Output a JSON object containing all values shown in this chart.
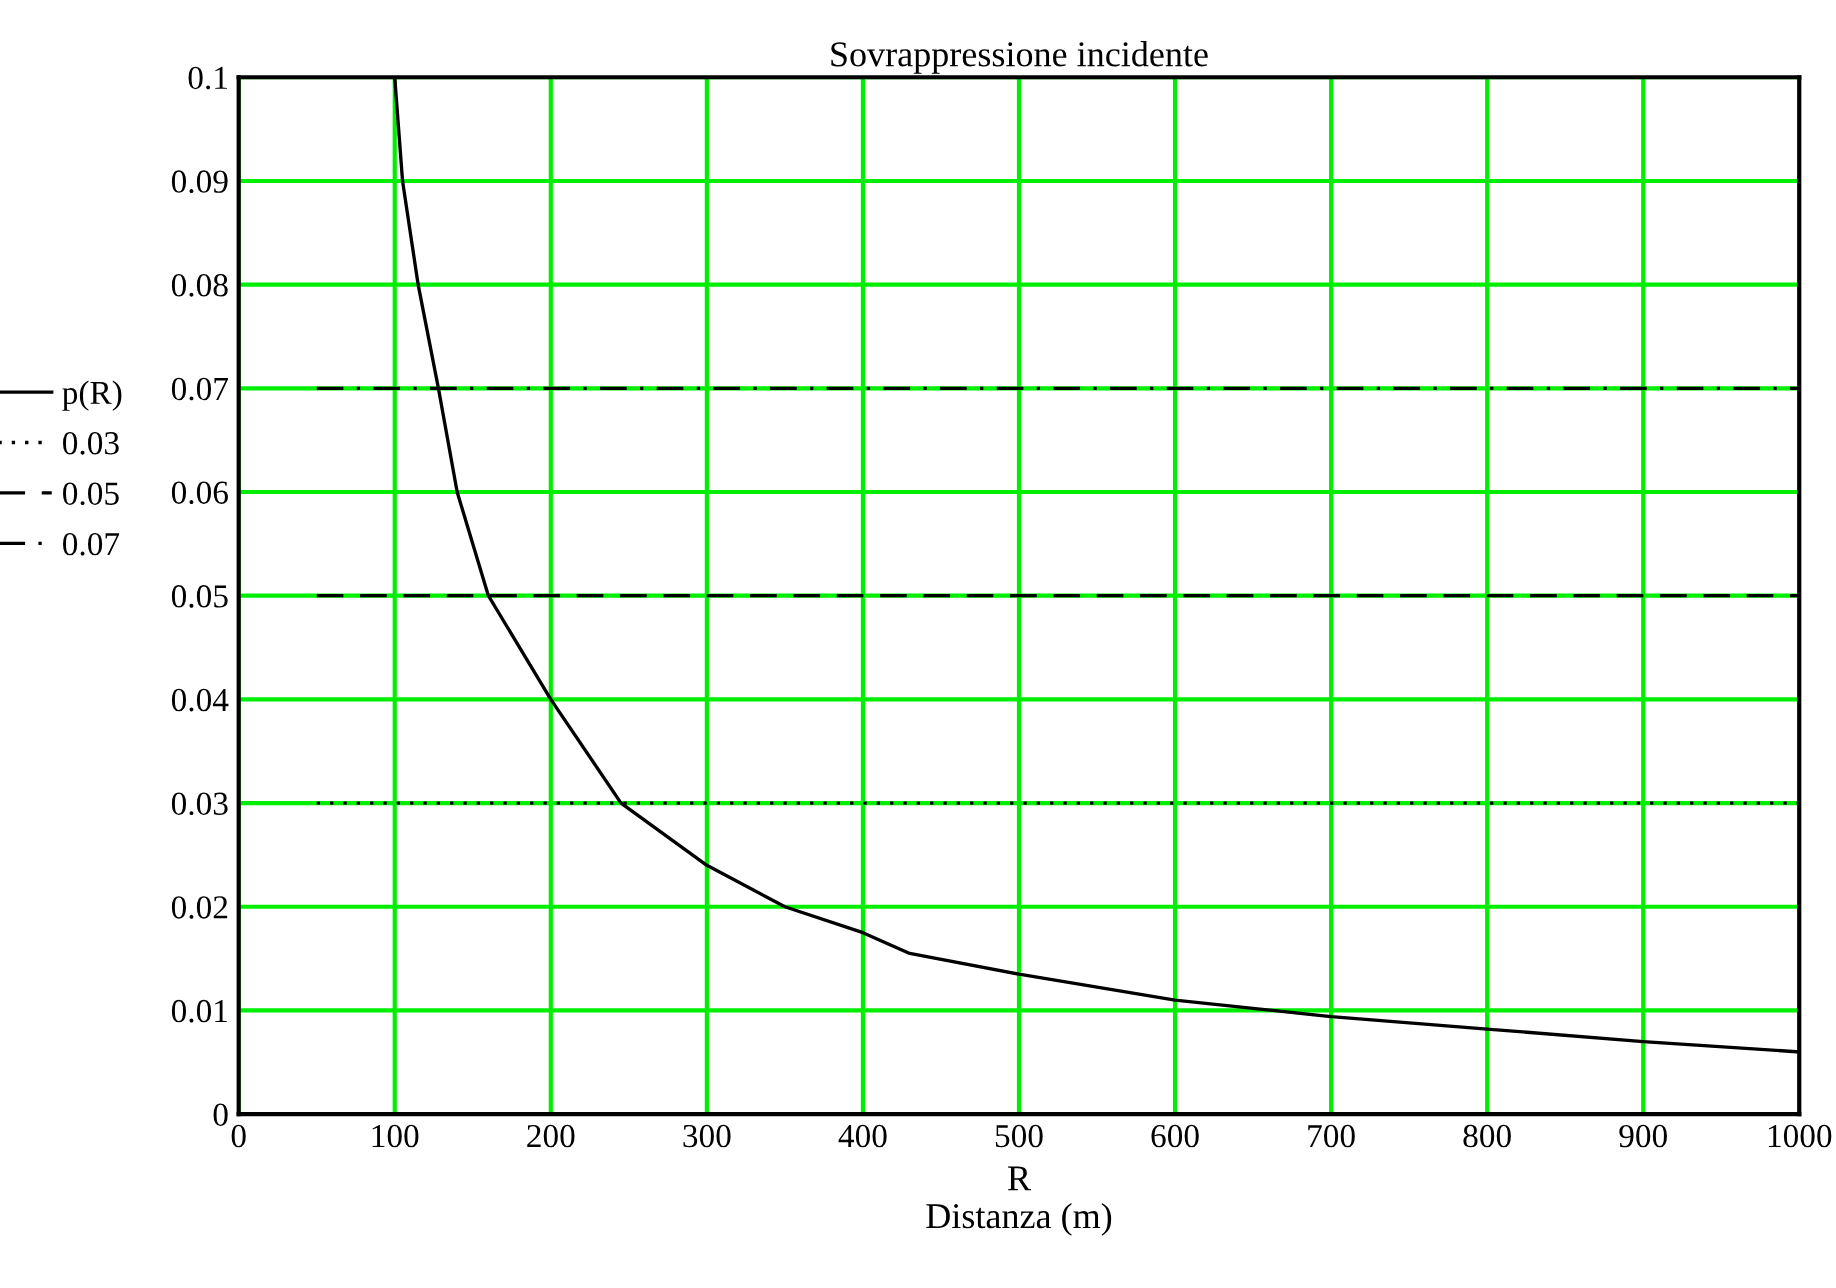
{
  "chart_data": {
    "type": "line",
    "title": "Sovrappressione incidente",
    "xlabel": "R\nDistanza (m)",
    "xlim": [
      0,
      1000
    ],
    "ylim": [
      0,
      0.1
    ],
    "xticks": [
      0,
      100,
      200,
      300,
      400,
      500,
      600,
      700,
      800,
      900,
      1000
    ],
    "yticks": [
      0,
      0.01,
      0.02,
      0.03,
      0.04,
      0.05,
      0.06,
      0.07,
      0.08,
      0.09,
      0.1
    ],
    "grid": true,
    "legend": "left",
    "marker": "none",
    "series": [
      {
        "name": "p(R)",
        "color": "#000000",
        "line_style": "solid",
        "x": [
          100,
          105,
          115,
          128,
          140,
          160,
          200,
          245,
          300,
          350,
          400,
          430,
          500,
          600,
          700,
          800,
          900,
          1000
        ],
        "values": [
          0.1,
          0.09,
          0.08,
          0.07,
          0.06,
          0.05,
          0.04,
          0.03,
          0.024,
          0.02,
          0.0175,
          0.0155,
          0.0135,
          0.011,
          0.0094,
          0.0082,
          0.007,
          0.006
        ]
      },
      {
        "name": "0.03",
        "color": "#000000",
        "line_style": "dotted",
        "x": [
          50,
          1000
        ],
        "values": [
          0.03,
          0.03
        ]
      },
      {
        "name": "0.05",
        "color": "#000000",
        "line_style": "dashed",
        "x": [
          50,
          1000
        ],
        "values": [
          0.05,
          0.05
        ]
      },
      {
        "name": "0.07",
        "color": "#000000",
        "line_style": "dashdot",
        "x": [
          50,
          1000
        ],
        "values": [
          0.07,
          0.07
        ]
      }
    ]
  }
}
